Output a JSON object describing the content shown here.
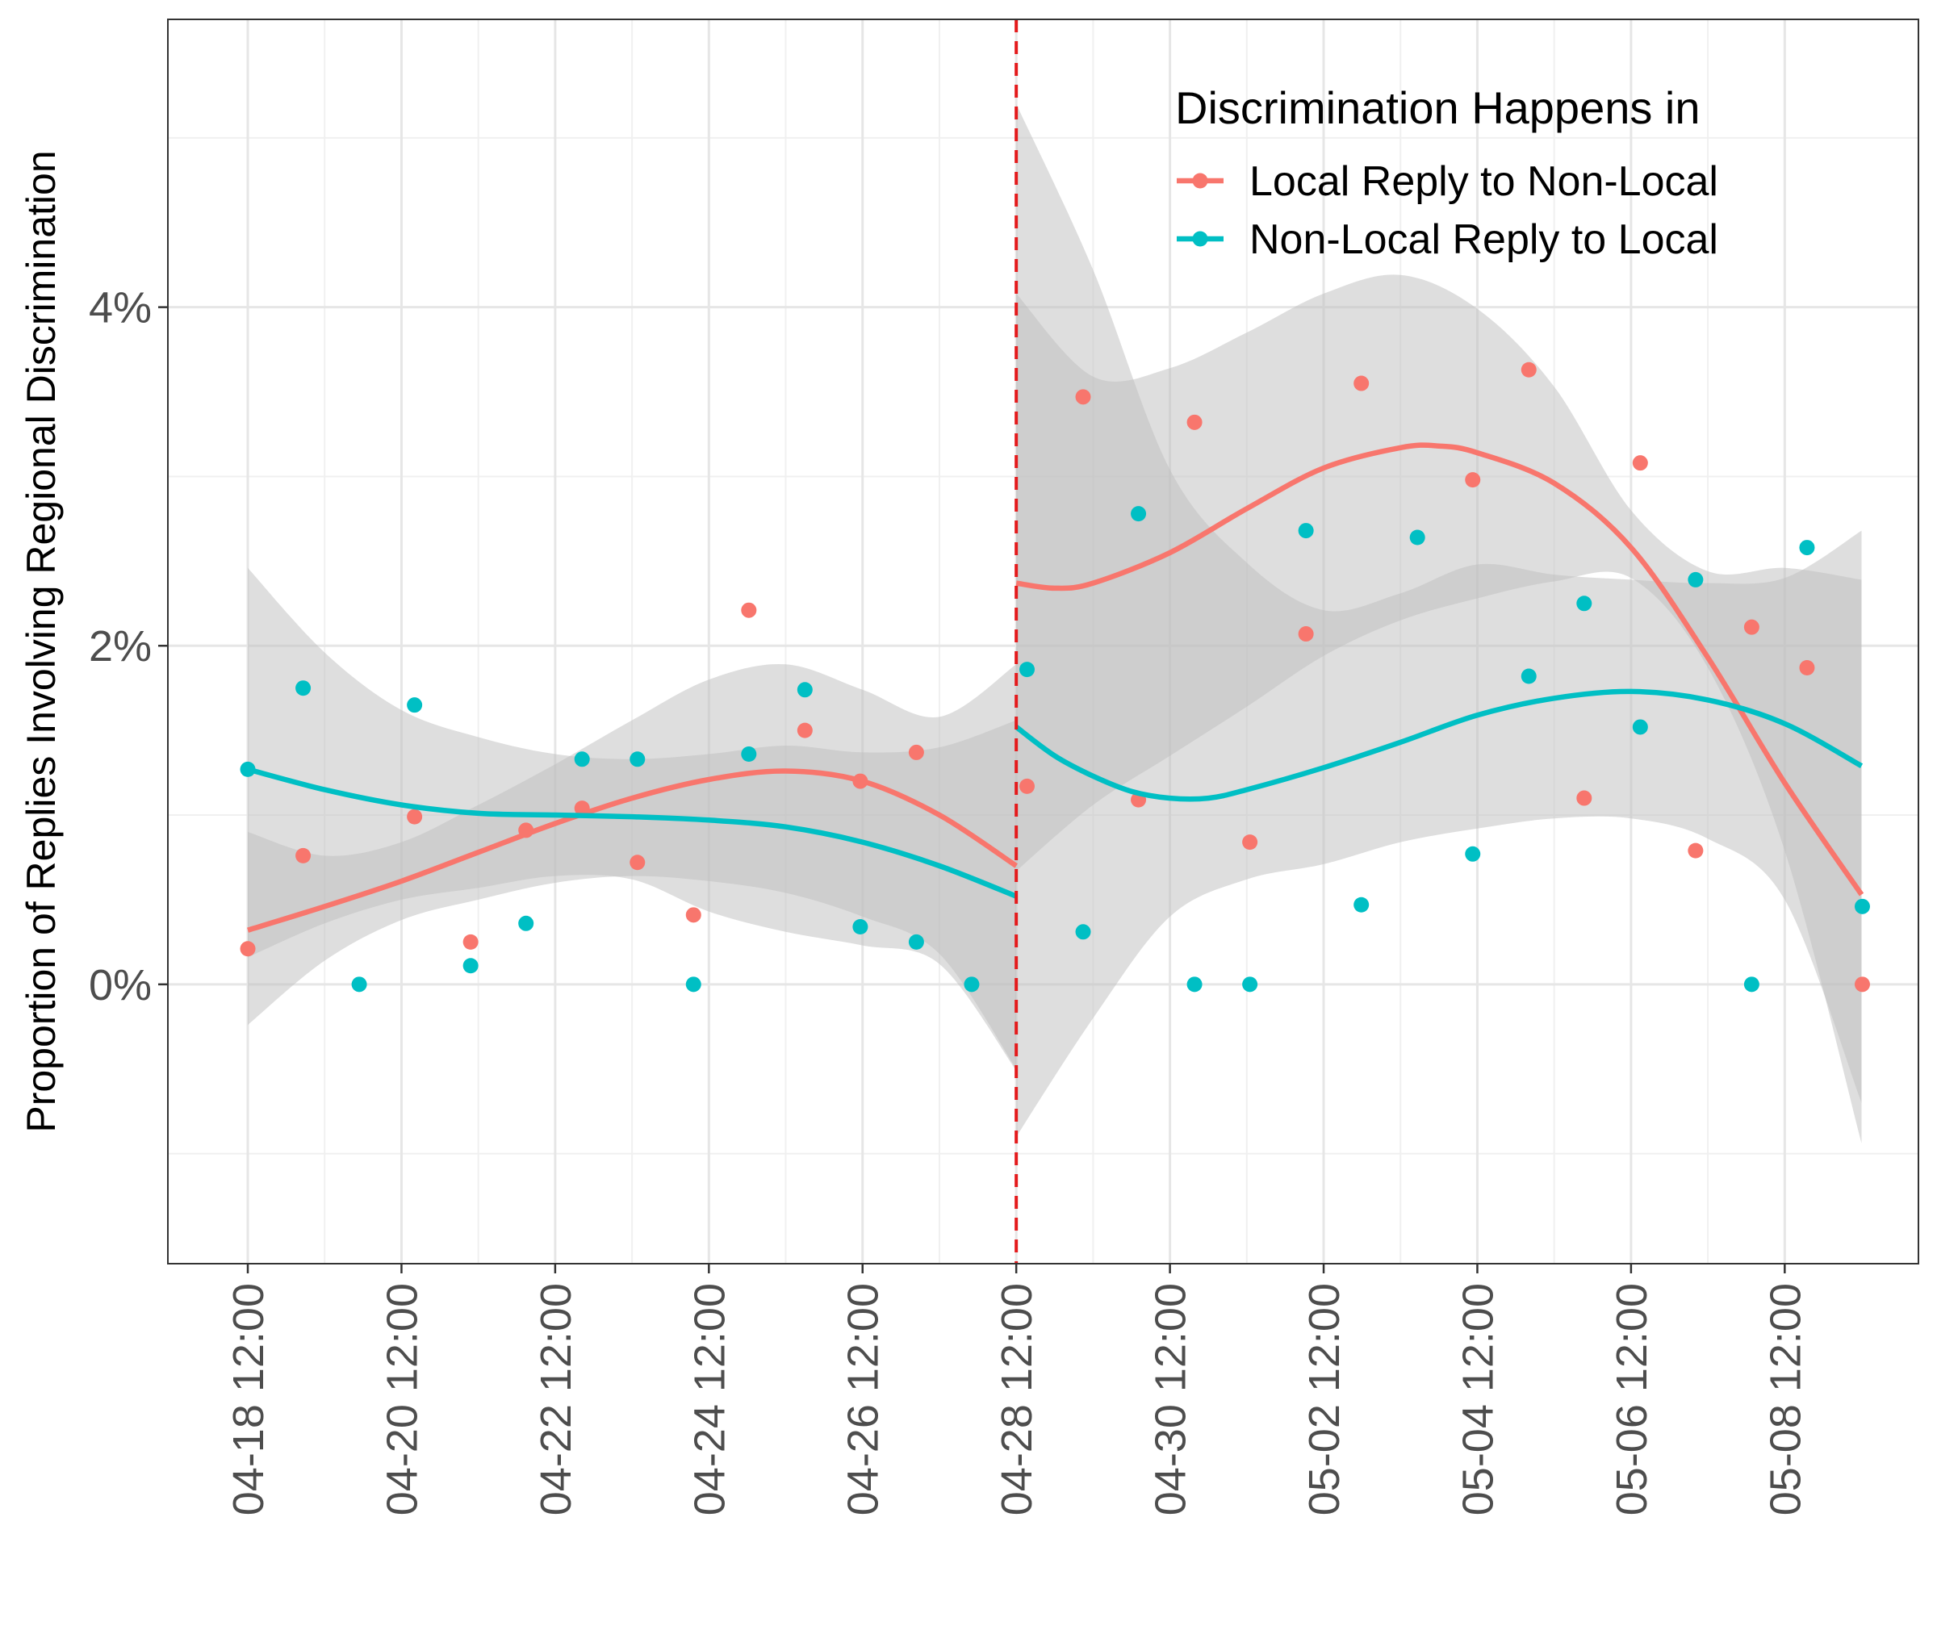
{
  "chart_data": {
    "type": "scatter",
    "title": "",
    "ylabel": "Proportion of Replies Involving Regional Discrimination",
    "xlabel": "",
    "x_ticks": [
      "04-18 12:00",
      "04-20 12:00",
      "04-22 12:00",
      "04-24 12:00",
      "04-26 12:00",
      "04-28 12:00",
      "04-30 12:00",
      "05-02 12:00",
      "05-04 12:00",
      "05-06 12:00",
      "05-08 12:00"
    ],
    "y_ticks": [
      "0%",
      "2%",
      "4%"
    ],
    "y_tick_values": [
      0,
      2,
      4
    ],
    "xlim": [
      -1.04,
      21.74
    ],
    "ylim": [
      -1.65,
      5.7
    ],
    "grid": true,
    "legend": {
      "title": "Discrimination Happens in",
      "position": "top-right",
      "entries": [
        "Local Reply to Non-Local",
        "Non-Local Reply to Local"
      ]
    },
    "vline": {
      "x": 10,
      "style": "dashed",
      "color": "#E41A1C"
    },
    "colors": {
      "local": "#F8766D",
      "nonlocal": "#00BFC4",
      "ribbon": "#BEBEBE"
    },
    "series": [
      {
        "name": "Local Reply to Non-Local",
        "color": "#F8766D",
        "points": [
          [
            0,
            0.21
          ],
          [
            0.72,
            0.76
          ],
          [
            2.17,
            0.99
          ],
          [
            2.9,
            0.25
          ],
          [
            3.62,
            0.91
          ],
          [
            4.35,
            1.04
          ],
          [
            5.07,
            0.72
          ],
          [
            5.8,
            0.41
          ],
          [
            6.52,
            2.21
          ],
          [
            7.25,
            1.5
          ],
          [
            7.97,
            1.2
          ],
          [
            8.7,
            1.37
          ],
          [
            10.14,
            1.17
          ],
          [
            10.87,
            3.47
          ],
          [
            11.59,
            1.09
          ],
          [
            12.32,
            3.32
          ],
          [
            13.04,
            0.84
          ],
          [
            13.77,
            2.07
          ],
          [
            14.49,
            3.55
          ],
          [
            15.94,
            2.98
          ],
          [
            16.67,
            3.63
          ],
          [
            17.39,
            1.1
          ],
          [
            18.12,
            3.08
          ],
          [
            18.84,
            0.79
          ],
          [
            19.57,
            2.11
          ],
          [
            20.29,
            1.87
          ],
          [
            21.01,
            0.0
          ]
        ],
        "segments": [
          {
            "fit": [
              [
                0,
                0.32
              ],
              [
                1,
                0.46
              ],
              [
                2,
                0.61
              ],
              [
                3,
                0.78
              ],
              [
                4,
                0.95
              ],
              [
                5,
                1.1
              ],
              [
                6,
                1.21
              ],
              [
                7,
                1.26
              ],
              [
                8,
                1.2
              ],
              [
                9,
                1.0
              ],
              [
                10,
                0.7
              ]
            ],
            "lower": [
              [
                0,
                -0.24
              ],
              [
                1,
                0.14
              ],
              [
                2,
                0.38
              ],
              [
                3,
                0.5
              ],
              [
                4,
                0.6
              ],
              [
                5,
                0.64
              ],
              [
                6,
                0.61
              ],
              [
                7,
                0.54
              ],
              [
                8,
                0.4
              ],
              [
                9,
                0.18
              ],
              [
                10,
                -0.5
              ]
            ],
            "upper": [
              [
                0,
                0.9
              ],
              [
                1,
                0.76
              ],
              [
                2,
                0.84
              ],
              [
                3,
                1.06
              ],
              [
                4,
                1.3
              ],
              [
                5,
                1.56
              ],
              [
                6,
                1.8
              ],
              [
                7,
                1.89
              ],
              [
                8,
                1.74
              ],
              [
                9,
                1.58
              ],
              [
                10,
                1.89
              ]
            ]
          },
          {
            "fit": [
              [
                10,
                2.37
              ],
              [
                10.5,
                2.34
              ],
              [
                11,
                2.37
              ],
              [
                12,
                2.55
              ],
              [
                13,
                2.81
              ],
              [
                14,
                3.05
              ],
              [
                15,
                3.17
              ],
              [
                15.5,
                3.18
              ],
              [
                16,
                3.14
              ],
              [
                17,
                2.96
              ],
              [
                18,
                2.58
              ],
              [
                19,
                1.93
              ],
              [
                20,
                1.19
              ],
              [
                21,
                0.53
              ]
            ],
            "lower": [
              [
                10,
                0.67
              ],
              [
                11,
                1.06
              ],
              [
                12,
                1.35
              ],
              [
                13,
                1.64
              ],
              [
                14,
                1.94
              ],
              [
                15,
                2.15
              ],
              [
                16,
                2.28
              ],
              [
                17,
                2.38
              ],
              [
                18,
                2.4
              ],
              [
                19,
                1.87
              ],
              [
                20,
                0.79
              ],
              [
                21,
                -0.94
              ]
            ],
            "upper": [
              [
                10,
                4.08
              ],
              [
                11,
                3.59
              ],
              [
                12,
                3.64
              ],
              [
                13,
                3.85
              ],
              [
                14,
                4.08
              ],
              [
                15,
                4.19
              ],
              [
                16,
                3.99
              ],
              [
                17,
                3.53
              ],
              [
                18,
                2.8
              ],
              [
                19,
                2.44
              ],
              [
                20,
                2.46
              ],
              [
                21,
                2.39
              ]
            ]
          }
        ]
      },
      {
        "name": "Non-Local Reply to Local",
        "color": "#00BFC4",
        "points": [
          [
            0,
            1.27
          ],
          [
            0.72,
            1.75
          ],
          [
            1.45,
            0.0
          ],
          [
            2.17,
            1.65
          ],
          [
            2.9,
            0.11
          ],
          [
            3.62,
            0.36
          ],
          [
            4.35,
            1.33
          ],
          [
            5.07,
            1.33
          ],
          [
            5.8,
            0.0
          ],
          [
            6.52,
            1.36
          ],
          [
            7.25,
            1.74
          ],
          [
            7.97,
            0.34
          ],
          [
            8.7,
            0.25
          ],
          [
            9.42,
            0.0
          ],
          [
            10.14,
            1.86
          ],
          [
            10.87,
            0.31
          ],
          [
            11.59,
            2.78
          ],
          [
            12.32,
            0.0
          ],
          [
            13.04,
            0.0
          ],
          [
            13.77,
            2.68
          ],
          [
            14.49,
            0.47
          ],
          [
            15.22,
            2.64
          ],
          [
            15.94,
            0.77
          ],
          [
            16.67,
            1.82
          ],
          [
            17.39,
            2.25
          ],
          [
            18.12,
            1.52
          ],
          [
            18.84,
            2.39
          ],
          [
            19.57,
            0.0
          ],
          [
            20.29,
            2.58
          ],
          [
            21.01,
            0.46
          ]
        ],
        "segments": [
          {
            "fit": [
              [
                0,
                1.27
              ],
              [
                1,
                1.15
              ],
              [
                2,
                1.06
              ],
              [
                3,
                1.01
              ],
              [
                4,
                1.0
              ],
              [
                5,
                0.99
              ],
              [
                6,
                0.97
              ],
              [
                7,
                0.93
              ],
              [
                8,
                0.84
              ],
              [
                9,
                0.7
              ],
              [
                10,
                0.52
              ]
            ],
            "lower": [
              [
                0,
                0.16
              ],
              [
                1,
                0.36
              ],
              [
                2,
                0.5
              ],
              [
                3,
                0.57
              ],
              [
                4,
                0.64
              ],
              [
                5,
                0.62
              ],
              [
                6,
                0.43
              ],
              [
                7,
                0.31
              ],
              [
                8,
                0.23
              ],
              [
                9,
                0.12
              ],
              [
                10,
                -0.51
              ]
            ],
            "upper": [
              [
                0,
                2.46
              ],
              [
                1,
                1.96
              ],
              [
                2,
                1.62
              ],
              [
                3,
                1.46
              ],
              [
                4,
                1.36
              ],
              [
                5,
                1.33
              ],
              [
                6,
                1.36
              ],
              [
                7,
                1.41
              ],
              [
                8,
                1.37
              ],
              [
                9,
                1.4
              ],
              [
                10,
                1.56
              ]
            ]
          },
          {
            "fit": [
              [
                10,
                1.52
              ],
              [
                10.5,
                1.35
              ],
              [
                11,
                1.23
              ],
              [
                11.5,
                1.14
              ],
              [
                12,
                1.1
              ],
              [
                12.5,
                1.1
              ],
              [
                13,
                1.15
              ],
              [
                14,
                1.28
              ],
              [
                15,
                1.43
              ],
              [
                16,
                1.59
              ],
              [
                17,
                1.69
              ],
              [
                18,
                1.73
              ],
              [
                19,
                1.68
              ],
              [
                20,
                1.54
              ],
              [
                21,
                1.29
              ]
            ],
            "lower": [
              [
                10,
                -0.9
              ],
              [
                11,
                -0.2
              ],
              [
                12,
                0.4
              ],
              [
                13,
                0.62
              ],
              [
                14,
                0.71
              ],
              [
                15,
                0.84
              ],
              [
                16,
                0.92
              ],
              [
                17,
                0.98
              ],
              [
                18,
                0.98
              ],
              [
                19,
                0.86
              ],
              [
                20,
                0.5
              ],
              [
                21,
                -0.7
              ]
            ],
            "upper": [
              [
                10,
                5.2
              ],
              [
                11,
                4.22
              ],
              [
                12,
                3.04
              ],
              [
                13,
                2.49
              ],
              [
                14,
                2.21
              ],
              [
                15,
                2.31
              ],
              [
                16,
                2.48
              ],
              [
                17,
                2.42
              ],
              [
                18,
                2.39
              ],
              [
                19,
                2.37
              ],
              [
                20,
                2.4
              ],
              [
                21,
                2.68
              ]
            ]
          }
        ]
      }
    ]
  }
}
